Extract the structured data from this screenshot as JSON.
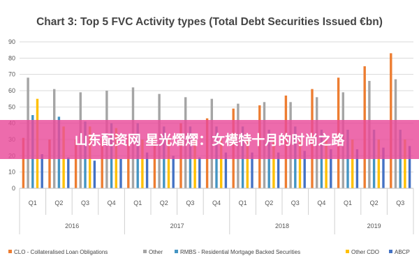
{
  "chart_data": {
    "type": "bar",
    "title": "Chart 3: Top 5 FVC Activity types (Total Debt Securities Issued €bn)",
    "ylim": [
      0,
      90
    ],
    "yticks": [
      0,
      10,
      20,
      30,
      40,
      50,
      60,
      70,
      80,
      90
    ],
    "grid": true,
    "legend_position": "bottom",
    "categories": [
      "Q1",
      "Q2",
      "Q3",
      "Q4",
      "Q1",
      "Q2",
      "Q3",
      "Q4",
      "Q1",
      "Q2",
      "Q3",
      "Q4",
      "Q1",
      "Q2",
      "Q3"
    ],
    "year_groups": [
      {
        "label": "2016",
        "count": 4
      },
      {
        "label": "2017",
        "count": 4
      },
      {
        "label": "2018",
        "count": 4
      },
      {
        "label": "2019",
        "count": 3
      }
    ],
    "series": [
      {
        "name": "CLO - Collateralised Loan Obligations",
        "color": "#ED7D31",
        "values": [
          31,
          30,
          30,
          31,
          32,
          32,
          40,
          43,
          49,
          51,
          57,
          61,
          68,
          75,
          83
        ]
      },
      {
        "name": "Other",
        "color": "#A5A5A5",
        "values": [
          68,
          61,
          59,
          60,
          62,
          58,
          56,
          55,
          52,
          53,
          53,
          56,
          59,
          66,
          67
        ]
      },
      {
        "name": "RMBS - Residential Mortgage Backed Securities",
        "color": "#4495C3",
        "values": [
          45,
          44,
          41,
          40,
          40,
          38,
          38,
          38,
          38,
          36,
          38,
          36,
          36,
          36,
          36
        ]
      },
      {
        "name": "Other CDO",
        "color": "#FFC000",
        "values": [
          55,
          38,
          38,
          37,
          30,
          30,
          30,
          30,
          30,
          30,
          30,
          30,
          30,
          30,
          30
        ]
      },
      {
        "name": "ABCP",
        "color": "#4472C4",
        "values": [
          21,
          19,
          17,
          18,
          22,
          20,
          19,
          22,
          22,
          22,
          23,
          24,
          24,
          25,
          26
        ]
      }
    ]
  },
  "overlay": {
    "banner_text": "山东配资网 星光熠熠：女模特十月的时尚之路",
    "banner_color": "#E94B9A"
  }
}
